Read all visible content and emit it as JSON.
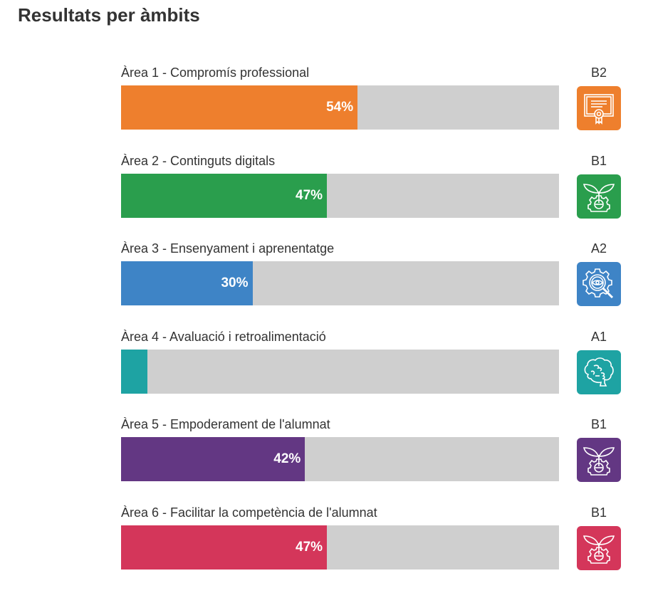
{
  "header": {
    "title": "Resultats per àmbits"
  },
  "chart_data": {
    "type": "bar",
    "orientation": "horizontal",
    "title": "Resultats per àmbits",
    "xlim": [
      0,
      100
    ],
    "unit": "%",
    "categories": [
      "Àrea 1 - Compromís professional",
      "Àrea 2 - Continguts digitals",
      "Àrea 3 - Ensenyament i aprenentatge",
      "Àrea 4 - Avaluació i retroalimentació",
      "Àrea 5 - Empoderament de l'alumnat",
      "Àrea 6 - Facilitar la competència de l'alumnat"
    ],
    "values": [
      54,
      47,
      30,
      6,
      42,
      47
    ],
    "value_labels": [
      "54%",
      "47%",
      "30%",
      "",
      "42%",
      "47%"
    ],
    "levels": [
      "B2",
      "B1",
      "A2",
      "A1",
      "B1",
      "B1"
    ],
    "icons": [
      "certificate-icon",
      "plant-gear-icon",
      "gear-eye-search-icon",
      "brain-icon",
      "plant-gear-icon",
      "plant-gear-icon"
    ],
    "colors": [
      "#ee7f2d",
      "#2a9e4d",
      "#3e84c6",
      "#1ea3a3",
      "#633783",
      "#d4365a"
    ],
    "track_color": "#cfcfcf"
  }
}
